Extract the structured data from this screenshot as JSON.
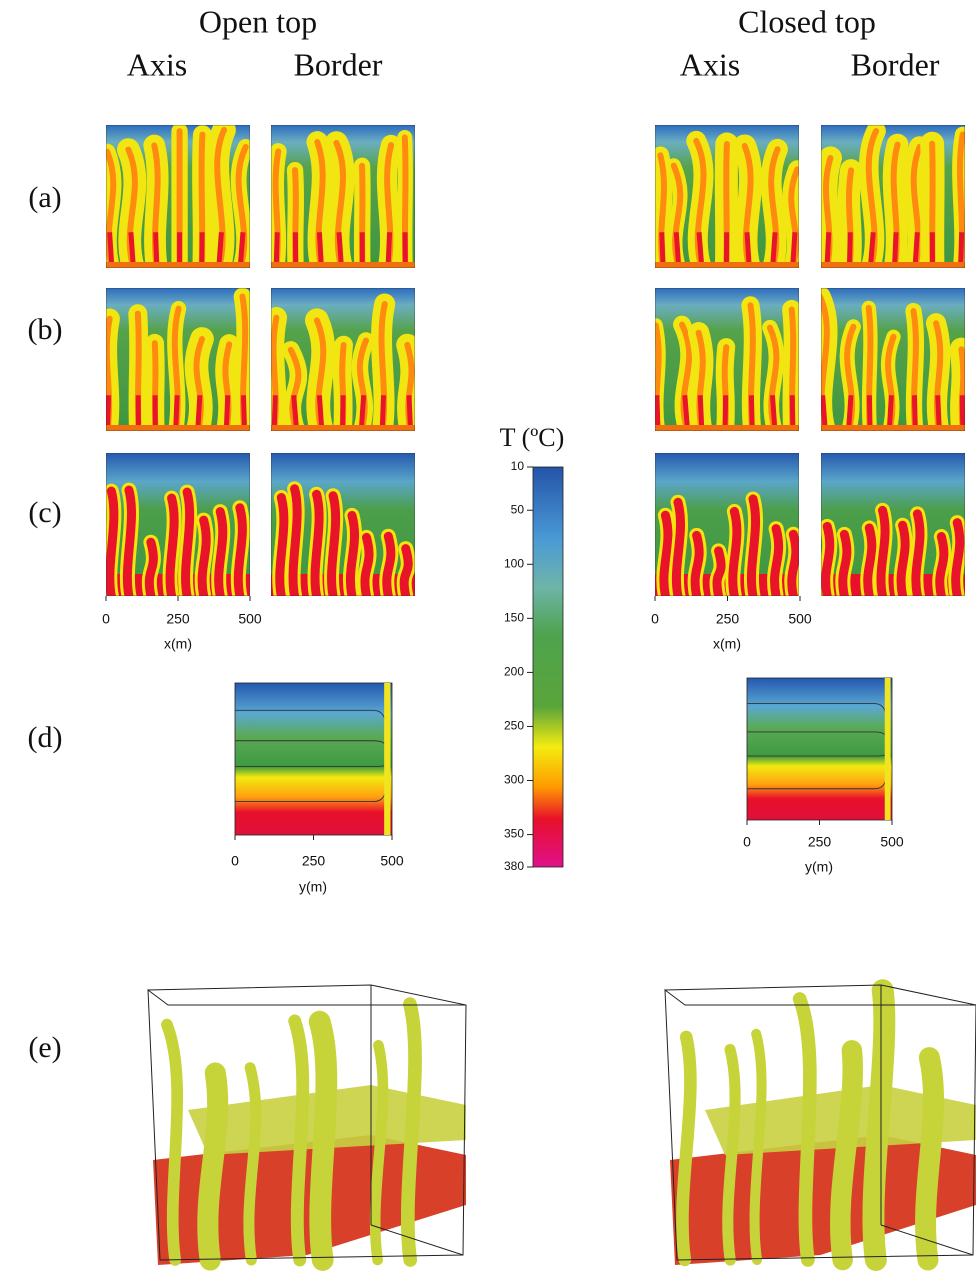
{
  "columns": [
    {
      "title": "Open top",
      "subtitles": [
        "Axis",
        "Border"
      ]
    },
    {
      "title": "Closed top",
      "subtitles": [
        "Axis",
        "Border"
      ]
    }
  ],
  "rows": [
    "(a)",
    "(b)",
    "(c)",
    "(d)",
    "(e)"
  ],
  "x_axis": {
    "ticks": [
      0,
      250,
      500
    ],
    "label": "x(m)"
  },
  "y_axis": {
    "ticks": [
      0,
      250,
      500
    ],
    "label": "y(m)"
  },
  "colorbar": {
    "title": "T (ºC)",
    "range": [
      10,
      380
    ],
    "ticks": [
      10,
      50,
      100,
      150,
      200,
      250,
      300,
      350,
      380
    ]
  }
}
